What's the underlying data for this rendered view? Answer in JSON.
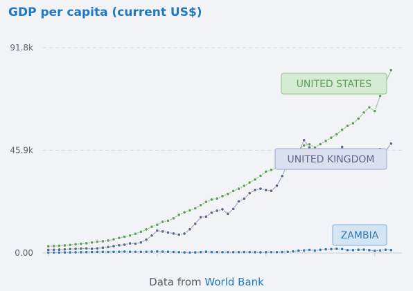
{
  "chart": {
    "title": "GDP per capita (current US$)"
  },
  "source": {
    "prefix": "Data from",
    "link_label": "World Bank"
  },
  "colors": {
    "background": "#f2f3f7",
    "title": "#1f78c1",
    "grid": "#d8dbe2",
    "axis": "#c9ccd3"
  },
  "chart_data": {
    "type": "line",
    "title": "GDP per capita (current US$)",
    "xlabel": "",
    "ylabel": "",
    "ylim": [
      0,
      91800
    ],
    "yticks": [
      {
        "value": 0,
        "label": "0.00"
      },
      {
        "value": 45900,
        "label": "45.9k"
      },
      {
        "value": 91800,
        "label": "91.8k"
      }
    ],
    "x": [
      1960,
      1961,
      1962,
      1963,
      1964,
      1965,
      1966,
      1967,
      1968,
      1969,
      1970,
      1971,
      1972,
      1973,
      1974,
      1975,
      1976,
      1977,
      1978,
      1979,
      1980,
      1981,
      1982,
      1983,
      1984,
      1985,
      1986,
      1987,
      1988,
      1989,
      1990,
      1991,
      1992,
      1993,
      1994,
      1995,
      1996,
      1997,
      1998,
      1999,
      2000,
      2001,
      2002,
      2003,
      2004,
      2005,
      2006,
      2007,
      2008,
      2009,
      2010,
      2011,
      2012,
      2013,
      2014,
      2015,
      2016,
      2017,
      2018,
      2019,
      2020,
      2021,
      2022,
      2023
    ],
    "xlim": [
      1959,
      2025
    ],
    "grid": true,
    "series": [
      {
        "name": "UNITED STATES",
        "color": "#5d9e5a",
        "label_bg": "#d6ebd3",
        "label_border": "#8fbf8a",
        "values": [
          3000,
          3100,
          3250,
          3400,
          3600,
          3850,
          4150,
          4350,
          4700,
          5050,
          5250,
          5600,
          6100,
          6750,
          7250,
          7800,
          8600,
          9450,
          10550,
          11700,
          12600,
          13950,
          14400,
          15550,
          17100,
          18200,
          19050,
          20000,
          21400,
          22850,
          23900,
          24350,
          25450,
          26400,
          27700,
          28700,
          30050,
          31500,
          32850,
          34500,
          36350,
          37150,
          38000,
          39500,
          41700,
          44100,
          46300,
          48050,
          48570,
          47190,
          48650,
          50070,
          51600,
          53100,
          55050,
          56850,
          58000,
          60100,
          62800,
          65100,
          63500,
          70200,
          76300,
          81700
        ]
      },
      {
        "name": "UNITED KINGDOM",
        "color": "#5a6688",
        "label_bg": "#dcdff0",
        "label_border": "#a0a6c6",
        "values": [
          1400,
          1450,
          1500,
          1600,
          1750,
          1850,
          1950,
          2000,
          1850,
          2050,
          2350,
          2650,
          3050,
          3450,
          3700,
          4300,
          4150,
          4700,
          5950,
          7800,
          10000,
          9600,
          9150,
          8700,
          8200,
          8650,
          10600,
          13100,
          15950,
          16250,
          18000,
          18900,
          19500,
          17500,
          19700,
          23100,
          24300,
          26700,
          28200,
          28700,
          28150,
          27800,
          30100,
          34400,
          40300,
          42000,
          44600,
          50400,
          47300,
          38700,
          39600,
          42100,
          42500,
          43400,
          47400,
          44960,
          41100,
          40600,
          43300,
          42700,
          40200,
          46500,
          45600,
          48900
        ]
      },
      {
        "name": "ZAMBIA",
        "color": "#2f77b0",
        "label_bg": "#d3e4f3",
        "label_border": "#7eaed6",
        "values": [
          230,
          240,
          250,
          270,
          290,
          320,
          350,
          390,
          420,
          470,
          480,
          450,
          480,
          560,
          620,
          560,
          530,
          500,
          540,
          600,
          640,
          600,
          560,
          470,
          380,
          290,
          220,
          280,
          400,
          550,
          410,
          400,
          380,
          380,
          380,
          390,
          430,
          400,
          350,
          320,
          350,
          370,
          360,
          420,
          520,
          690,
          1030,
          1140,
          1390,
          1080,
          1430,
          1640,
          1730,
          1840,
          1720,
          1310,
          1260,
          1490,
          1520,
          1270,
          960,
          1140,
          1490,
          1330
        ]
      }
    ]
  }
}
